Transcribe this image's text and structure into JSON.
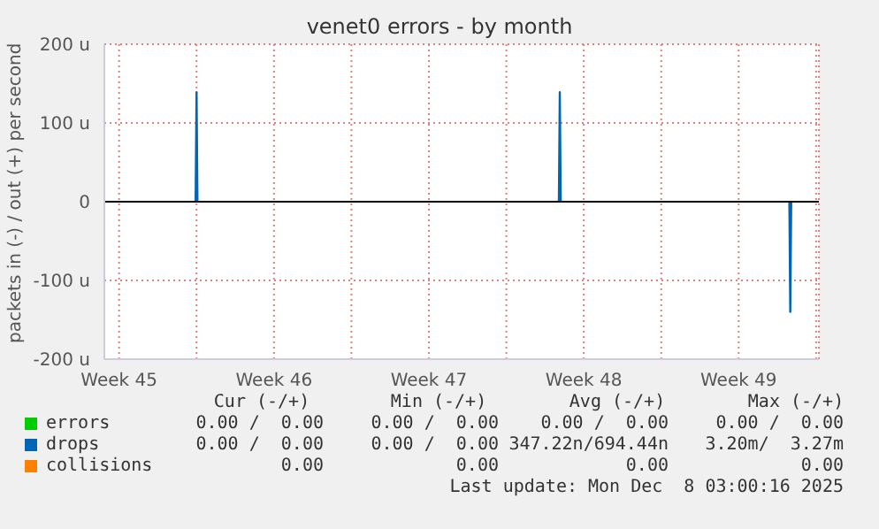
{
  "chart_data": {
    "type": "line",
    "title": "venet0 errors - by month",
    "ylabel": "packets in (-) / out (+) per second",
    "xlim": [
      "2025-11-05T20:00",
      "2025-12-08T03:00"
    ],
    "xticks": [
      {
        "value": "2025-11-06T12:00",
        "label": "Week 45"
      },
      {
        "value": "2025-11-10",
        "label": null
      },
      {
        "value": "2025-11-13T12:00",
        "label": "Week 46"
      },
      {
        "value": "2025-11-17",
        "label": null
      },
      {
        "value": "2025-11-20T12:00",
        "label": "Week 47"
      },
      {
        "value": "2025-11-24",
        "label": null
      },
      {
        "value": "2025-11-27T12:00",
        "label": "Week 48"
      },
      {
        "value": "2025-12-01",
        "label": null
      },
      {
        "value": "2025-12-04T12:00",
        "label": "Week 49"
      },
      {
        "value": "2025-12-08",
        "label": null
      }
    ],
    "ylim": [
      -200,
      200
    ],
    "yticks": [
      {
        "value": -200,
        "label": "-200 u"
      },
      {
        "value": -100,
        "label": "-100 u"
      },
      0,
      {
        "value": 100,
        "label": "100 u"
      },
      {
        "value": 200,
        "label": "200 u"
      }
    ],
    "grid": true,
    "legend": "bottom",
    "marker": "none",
    "line_style": "solid",
    "ref_lines": [
      {
        "axis": "y",
        "value": 0,
        "color": "#000000"
      }
    ],
    "series": [
      {
        "name": "errors",
        "color": "#00cc00"
      },
      {
        "name": "drops",
        "color": "#0066b3",
        "x": [
          "2025-11-09T23:00",
          "2025-11-10T00:00",
          "2025-11-10T01:00",
          "2025-11-18T00:00",
          "2025-11-26T09:00",
          "2025-11-26T10:00",
          "2025-11-26T11:00",
          "2025-12-01T00:00",
          "2025-12-06T19:00",
          "2025-12-06T20:00",
          "2025-12-06T21:00"
        ],
        "values": [
          0,
          139,
          0,
          null,
          0,
          139,
          0,
          null,
          0,
          -140,
          0
        ]
      },
      {
        "name": "collisions",
        "color": "#ff8000"
      }
    ],
    "annotations": [
      "Cur (-/+)",
      "Min (-/+)",
      "Avg (-/+)",
      "Max (-/+)",
      "0.00 /  0.00",
      "0.00 /  0.00",
      "0.00 /  0.00",
      "0.00 /  0.00",
      "0.00 /  0.00",
      "0.00 /  0.00",
      "347.22n/694.44n",
      "3.20m/  3.27m",
      "0.00",
      "0.00",
      "0.00",
      "0.00",
      "Last update: Mon Dec  8 03:00:16 2025"
    ]
  }
}
